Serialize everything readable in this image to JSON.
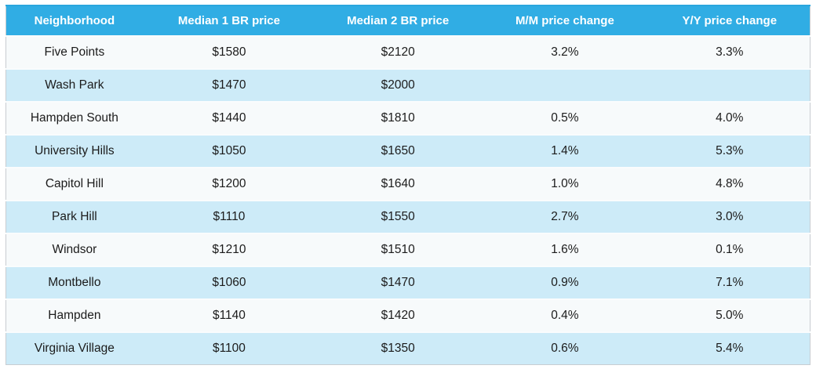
{
  "table": {
    "name": "neighborhood-rent-prices",
    "columns": [
      {
        "key": "neighborhood",
        "label": "Neighborhood"
      },
      {
        "key": "median-1br-price",
        "label": "Median 1 BR price"
      },
      {
        "key": "median-2br-price",
        "label": "Median 2 BR price"
      },
      {
        "key": "mm-price-change",
        "label": "M/M price change"
      },
      {
        "key": "yy-price-change",
        "label": "Y/Y price change"
      }
    ],
    "rows": [
      {
        "neighborhood": "Five Points",
        "median_1br": "$1580",
        "median_2br": "$2120",
        "mm_change": "3.2%",
        "yy_change": "3.3%"
      },
      {
        "neighborhood": "Wash Park",
        "median_1br": "$1470",
        "median_2br": "$2000",
        "mm_change": "",
        "yy_change": ""
      },
      {
        "neighborhood": "Hampden South",
        "median_1br": "$1440",
        "median_2br": "$1810",
        "mm_change": "0.5%",
        "yy_change": "4.0%"
      },
      {
        "neighborhood": "University Hills",
        "median_1br": "$1050",
        "median_2br": "$1650",
        "mm_change": "1.4%",
        "yy_change": "5.3%"
      },
      {
        "neighborhood": "Capitol Hill",
        "median_1br": "$1200",
        "median_2br": "$1640",
        "mm_change": "1.0%",
        "yy_change": "4.8%"
      },
      {
        "neighborhood": "Park Hill",
        "median_1br": "$1110",
        "median_2br": "$1550",
        "mm_change": "2.7%",
        "yy_change": "3.0%"
      },
      {
        "neighborhood": "Windsor",
        "median_1br": "$1210",
        "median_2br": "$1510",
        "mm_change": "1.6%",
        "yy_change": "0.1%"
      },
      {
        "neighborhood": "Montbello",
        "median_1br": "$1060",
        "median_2br": "$1470",
        "mm_change": "0.9%",
        "yy_change": "7.1%"
      },
      {
        "neighborhood": "Hampden",
        "median_1br": "$1140",
        "median_2br": "$1420",
        "mm_change": "0.4%",
        "yy_change": "5.0%"
      },
      {
        "neighborhood": "Virginia Village",
        "median_1br": "$1100",
        "median_2br": "$1350",
        "mm_change": "0.6%",
        "yy_change": "5.4%"
      }
    ],
    "colors": {
      "header_bg": "#30ade4",
      "header_top": "#2aa6de",
      "header_text": "#ffffff",
      "row_odd_bg": "#f7fafb",
      "row_even_bg": "#cdebf8",
      "body_text": "#1b1b1b",
      "border": "#c8cdd1",
      "divider": "#fafcfd"
    }
  }
}
